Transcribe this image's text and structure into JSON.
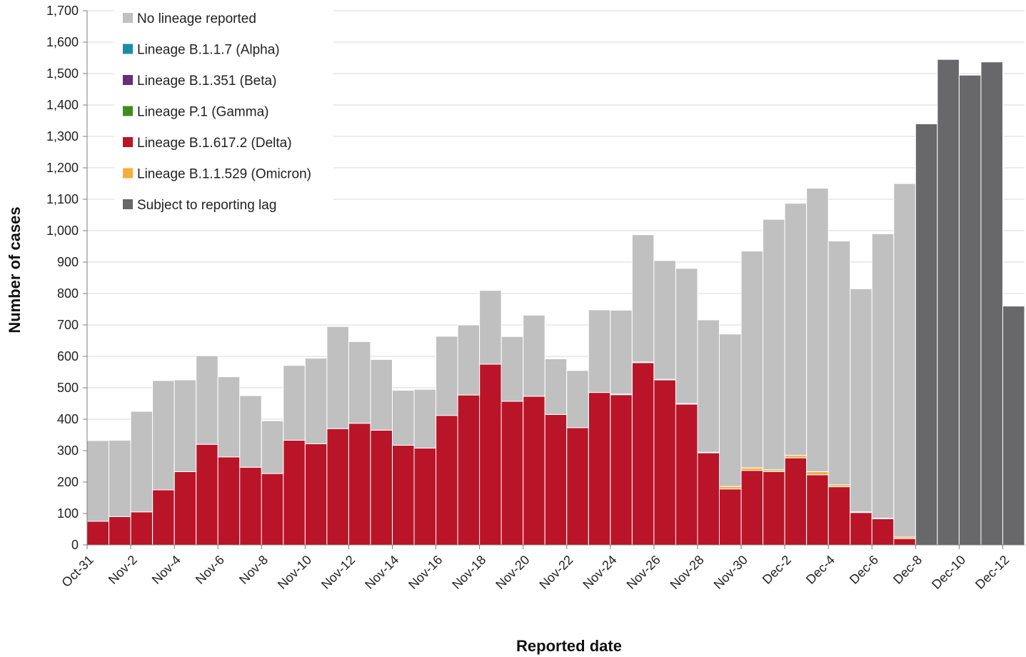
{
  "chart_data": {
    "type": "bar",
    "stacked": true,
    "xlabel": "Reported date",
    "ylabel": "Number of cases",
    "ylim": [
      0,
      1700
    ],
    "yticks": [
      0,
      100,
      200,
      300,
      400,
      500,
      600,
      700,
      800,
      900,
      1000,
      1100,
      1200,
      1300,
      1400,
      1500,
      1600,
      1700
    ],
    "ytick_labels": [
      "0",
      "100",
      "200",
      "300",
      "400",
      "500",
      "600",
      "700",
      "800",
      "900",
      "1,000",
      "1,100",
      "1,200",
      "1,300",
      "1,400",
      "1,500",
      "1,600",
      "1,700"
    ],
    "grid": "horizontal",
    "legend_position": "top-left",
    "categories": [
      "Oct-31",
      "Nov-1",
      "Nov-2",
      "Nov-3",
      "Nov-4",
      "Nov-5",
      "Nov-6",
      "Nov-7",
      "Nov-8",
      "Nov-9",
      "Nov-10",
      "Nov-11",
      "Nov-12",
      "Nov-13",
      "Nov-14",
      "Nov-15",
      "Nov-16",
      "Nov-17",
      "Nov-18",
      "Nov-19",
      "Nov-20",
      "Nov-21",
      "Nov-22",
      "Nov-23",
      "Nov-24",
      "Nov-25",
      "Nov-26",
      "Nov-27",
      "Nov-28",
      "Nov-29",
      "Nov-30",
      "Dec-1",
      "Dec-2",
      "Dec-3",
      "Dec-4",
      "Dec-5",
      "Dec-6",
      "Dec-7",
      "Dec-8",
      "Dec-9",
      "Dec-10",
      "Dec-11",
      "Dec-12"
    ],
    "xtick_labels": [
      "Oct-31",
      "",
      "Nov-2",
      "",
      "Nov-4",
      "",
      "Nov-6",
      "",
      "Nov-8",
      "",
      "Nov-10",
      "",
      "Nov-12",
      "",
      "Nov-14",
      "",
      "Nov-16",
      "",
      "Nov-18",
      "",
      "Nov-20",
      "",
      "Nov-22",
      "",
      "Nov-24",
      "",
      "Nov-26",
      "",
      "Nov-28",
      "",
      "Nov-30",
      "",
      "Dec-2",
      "",
      "Dec-4",
      "",
      "Dec-6",
      "",
      "Dec-8",
      "",
      "Dec-10",
      "",
      "Dec-12"
    ],
    "series": [
      {
        "name": "Lineage B.1.617.2 (Delta)",
        "color": "#BA1428",
        "values": [
          75,
          90,
          105,
          175,
          233,
          320,
          280,
          247,
          227,
          333,
          322,
          370,
          387,
          365,
          317,
          308,
          412,
          477,
          575,
          457,
          473,
          415,
          373,
          485,
          478,
          580,
          525,
          448,
          293,
          178,
          237,
          233,
          277,
          223,
          185,
          103,
          83,
          20,
          0,
          0,
          0,
          0,
          0
        ]
      },
      {
        "name": "Lineage B.1.1.529 (Omicron)",
        "color": "#F5AE3B",
        "values": [
          0,
          0,
          0,
          0,
          0,
          0,
          0,
          0,
          0,
          0,
          0,
          0,
          0,
          0,
          0,
          0,
          0,
          0,
          0,
          0,
          0,
          0,
          0,
          0,
          2,
          2,
          2,
          2,
          2,
          8,
          8,
          6,
          8,
          10,
          6,
          2,
          2,
          5,
          0,
          0,
          0,
          0,
          0
        ]
      },
      {
        "name": "Lineage B.1.1.7 (Alpha)",
        "color": "#1B8CA8",
        "values": [
          0,
          0,
          0,
          0,
          0,
          0,
          0,
          0,
          0,
          0,
          0,
          0,
          0,
          0,
          0,
          0,
          0,
          0,
          0,
          0,
          0,
          0,
          0,
          0,
          0,
          0,
          0,
          0,
          0,
          0,
          0,
          0,
          0,
          0,
          0,
          0,
          0,
          0,
          0,
          0,
          0,
          0,
          0
        ]
      },
      {
        "name": "Lineage B.1.351 (Beta)",
        "color": "#6A2C7E",
        "values": [
          0,
          0,
          0,
          0,
          0,
          0,
          0,
          0,
          0,
          0,
          0,
          0,
          0,
          0,
          0,
          0,
          0,
          0,
          0,
          0,
          0,
          0,
          0,
          0,
          0,
          0,
          0,
          0,
          0,
          0,
          0,
          0,
          0,
          0,
          0,
          0,
          0,
          0,
          0,
          0,
          0,
          0,
          0
        ]
      },
      {
        "name": "Lineage P.1 (Gamma)",
        "color": "#3E8E1F",
        "values": [
          0,
          0,
          0,
          0,
          0,
          0,
          0,
          0,
          0,
          0,
          0,
          0,
          0,
          0,
          0,
          0,
          0,
          0,
          0,
          0,
          0,
          0,
          0,
          0,
          0,
          0,
          0,
          0,
          0,
          0,
          0,
          0,
          0,
          0,
          0,
          0,
          0,
          0,
          0,
          0,
          0,
          0,
          0
        ]
      },
      {
        "name": "No lineage reported",
        "color": "#C0C0C0",
        "values": [
          257,
          243,
          320,
          348,
          292,
          282,
          255,
          228,
          168,
          238,
          272,
          325,
          260,
          225,
          175,
          187,
          252,
          223,
          235,
          206,
          258,
          177,
          182,
          263,
          267,
          405,
          378,
          430,
          421,
          485,
          690,
          797,
          802,
          902,
          776,
          710,
          905,
          1125,
          0,
          0,
          0,
          0,
          0
        ]
      },
      {
        "name": "Subject to reporting lag",
        "color": "#68686B",
        "values": [
          0,
          0,
          0,
          0,
          0,
          0,
          0,
          0,
          0,
          0,
          0,
          0,
          0,
          0,
          0,
          0,
          0,
          0,
          0,
          0,
          0,
          0,
          0,
          0,
          0,
          0,
          0,
          0,
          0,
          0,
          0,
          0,
          0,
          0,
          0,
          0,
          0,
          0,
          1340,
          1545,
          1495,
          1537,
          760
        ]
      }
    ],
    "legend": [
      {
        "label": "No lineage reported",
        "color": "#C0C0C0"
      },
      {
        "label": "Lineage B.1.1.7 (Alpha)",
        "color": "#1B8CA8"
      },
      {
        "label": "Lineage B.1.351 (Beta)",
        "color": "#6A2C7E"
      },
      {
        "label": "Lineage P.1 (Gamma)",
        "color": "#3E8E1F"
      },
      {
        "label": "Lineage B.1.617.2 (Delta)",
        "color": "#BA1428"
      },
      {
        "label": "Lineage B.1.1.529 (Omicron)",
        "color": "#F5AE3B"
      },
      {
        "label": "Subject to reporting lag",
        "color": "#68686B"
      }
    ]
  }
}
